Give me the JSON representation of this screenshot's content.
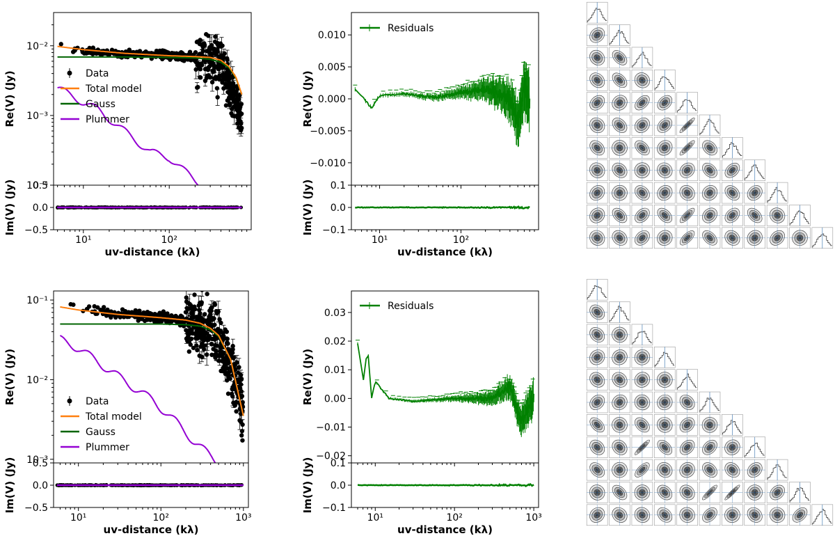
{
  "labels": {
    "re_axis": "Re(V) (Jy)",
    "im_axis": "Im(V) (Jy)",
    "uv_axis": "uv-distance (kλ)",
    "legend_data": "Data",
    "legend_total": "Total model",
    "legend_gauss": "Gauss",
    "legend_plummer": "Plummer",
    "legend_residuals": "Residuals"
  },
  "colors": {
    "data": "#000000",
    "total_model": "#ff7f0e",
    "gauss": "#006400",
    "plummer": "#9400d3",
    "residuals": "#008000",
    "corner_contour": "#333333",
    "corner_hist": "#4a7fb5"
  },
  "chart_data": [
    {
      "type": "scatter",
      "panel": "top row - visibility fit",
      "x_scale": "log",
      "xlim": [
        4.5,
        900
      ],
      "re": {
        "y_scale": "log",
        "ylim": [
          0.0001,
          0.03
        ],
        "yticklabels": [
          "10⁻⁴",
          "10⁻³",
          "10⁻²"
        ]
      },
      "im": {
        "ylim": [
          -0.5,
          0.5
        ],
        "yticklabels": [
          "−0.5",
          "0.0",
          "0.5"
        ]
      },
      "xticklabels": [
        "10¹",
        "10²"
      ],
      "series": [
        {
          "name": "Data",
          "x": [
            5,
            7,
            10,
            20,
            50,
            100,
            200,
            300,
            400,
            500,
            600,
            700
          ],
          "y": [
            0.011,
            0.0095,
            0.0085,
            0.008,
            0.0075,
            0.0072,
            0.0068,
            0.0065,
            0.005,
            0.003,
            0.0015,
            0.0008
          ]
        },
        {
          "name": "Total model",
          "x": [
            5,
            10,
            30,
            100,
            200,
            300,
            400,
            500,
            600,
            700
          ],
          "y": [
            0.0098,
            0.0088,
            0.0078,
            0.0072,
            0.007,
            0.0068,
            0.0062,
            0.005,
            0.0035,
            0.002
          ]
        },
        {
          "name": "Gauss",
          "x": [
            5,
            10,
            30,
            100,
            200,
            300,
            400,
            500,
            600,
            700
          ],
          "y": [
            0.0069,
            0.0069,
            0.0069,
            0.0068,
            0.0067,
            0.0064,
            0.0058,
            0.0048,
            0.0034,
            0.002
          ]
        },
        {
          "name": "Plummer",
          "x": [
            5,
            8,
            15,
            30,
            60,
            100,
            150,
            200,
            250
          ],
          "y": [
            0.0025,
            0.0018,
            0.0012,
            0.0006,
            0.0003,
            0.00025,
            0.00016,
            0.00012,
            0.0001
          ]
        }
      ]
    },
    {
      "type": "line",
      "panel": "top row - residuals",
      "x_scale": "log",
      "xlim": [
        4.5,
        900
      ],
      "re": {
        "ylim": [
          -0.0135,
          0.0135
        ],
        "yticklabels": [
          "−0.010",
          "−0.005",
          "0.000",
          "0.005",
          "0.010"
        ]
      },
      "im": {
        "ylim": [
          -0.1,
          0.1
        ],
        "yticklabels": [
          "−0.1",
          "0.0",
          "0.1"
        ]
      },
      "xticklabels": [
        "10¹",
        "10²"
      ],
      "series": [
        {
          "name": "Residuals",
          "x": [
            5,
            6,
            8,
            10,
            20,
            50,
            100,
            200,
            400,
            500,
            600,
            700
          ],
          "y": [
            0.0015,
            0.0005,
            -0.0015,
            0.0005,
            0.0008,
            0.0002,
            0.001,
            0.0015,
            0.0,
            -0.004,
            0.002,
            0.0
          ]
        }
      ]
    },
    {
      "type": "scatter",
      "panel": "bottom row - visibility fit",
      "x_scale": "log",
      "xlim": [
        5,
        1150
      ],
      "re": {
        "y_scale": "log",
        "ylim": [
          0.0009,
          0.13
        ],
        "yticklabels": [
          "10⁻³",
          "10⁻²",
          "10⁻¹"
        ]
      },
      "im": {
        "ylim": [
          -0.5,
          0.5
        ],
        "yticklabels": [
          "−0.5",
          "0.0",
          "0.5"
        ]
      },
      "xticklabels": [
        "10¹",
        "10²",
        "10³"
      ],
      "series": [
        {
          "name": "Data",
          "x": [
            6,
            8,
            10,
            20,
            50,
            100,
            200,
            300,
            500,
            700,
            900,
            1000
          ],
          "y": [
            0.1,
            0.09,
            0.08,
            0.07,
            0.065,
            0.06,
            0.055,
            0.05,
            0.035,
            0.015,
            0.006,
            0.003
          ]
        },
        {
          "name": "Total model",
          "x": [
            6,
            10,
            30,
            100,
            200,
            300,
            400,
            500,
            700,
            1000
          ],
          "y": [
            0.082,
            0.075,
            0.066,
            0.06,
            0.056,
            0.051,
            0.044,
            0.036,
            0.018,
            0.0035
          ]
        },
        {
          "name": "Gauss",
          "x": [
            6,
            10,
            30,
            100,
            200,
            300,
            400,
            500,
            700,
            1000
          ],
          "y": [
            0.05,
            0.05,
            0.05,
            0.05,
            0.049,
            0.047,
            0.042,
            0.035,
            0.018,
            0.0035
          ]
        },
        {
          "name": "Plummer",
          "x": [
            6,
            10,
            20,
            40,
            80,
            150,
            250,
            400,
            500
          ],
          "y": [
            0.032,
            0.025,
            0.015,
            0.009,
            0.0055,
            0.003,
            0.0017,
            0.0011,
            0.0009
          ]
        }
      ]
    },
    {
      "type": "line",
      "panel": "bottom row - residuals",
      "x_scale": "log",
      "xlim": [
        5,
        1150
      ],
      "re": {
        "ylim": [
          -0.0225,
          0.0375
        ],
        "yticklabels": [
          "−0.02",
          "−0.01",
          "0.00",
          "0.01",
          "0.02",
          "0.03"
        ]
      },
      "im": {
        "ylim": [
          -0.1,
          0.1
        ],
        "yticklabels": [
          "−0.1",
          "0.0",
          "0.1"
        ]
      },
      "xticklabels": [
        "10¹",
        "10²",
        "10³"
      ],
      "series": [
        {
          "name": "Residuals",
          "x": [
            6,
            7,
            8,
            9,
            10,
            15,
            30,
            100,
            300,
            500,
            700,
            1000
          ],
          "y": [
            0.019,
            0.005,
            0.018,
            0.0,
            0.006,
            0.0,
            -0.001,
            0.0,
            0.0,
            0.004,
            -0.008,
            0.0
          ]
        }
      ]
    },
    {
      "type": "corner",
      "panel": "top row - posterior corner plot",
      "n_params": 11
    },
    {
      "type": "corner",
      "panel": "bottom row - posterior corner plot",
      "n_params": 11
    }
  ]
}
